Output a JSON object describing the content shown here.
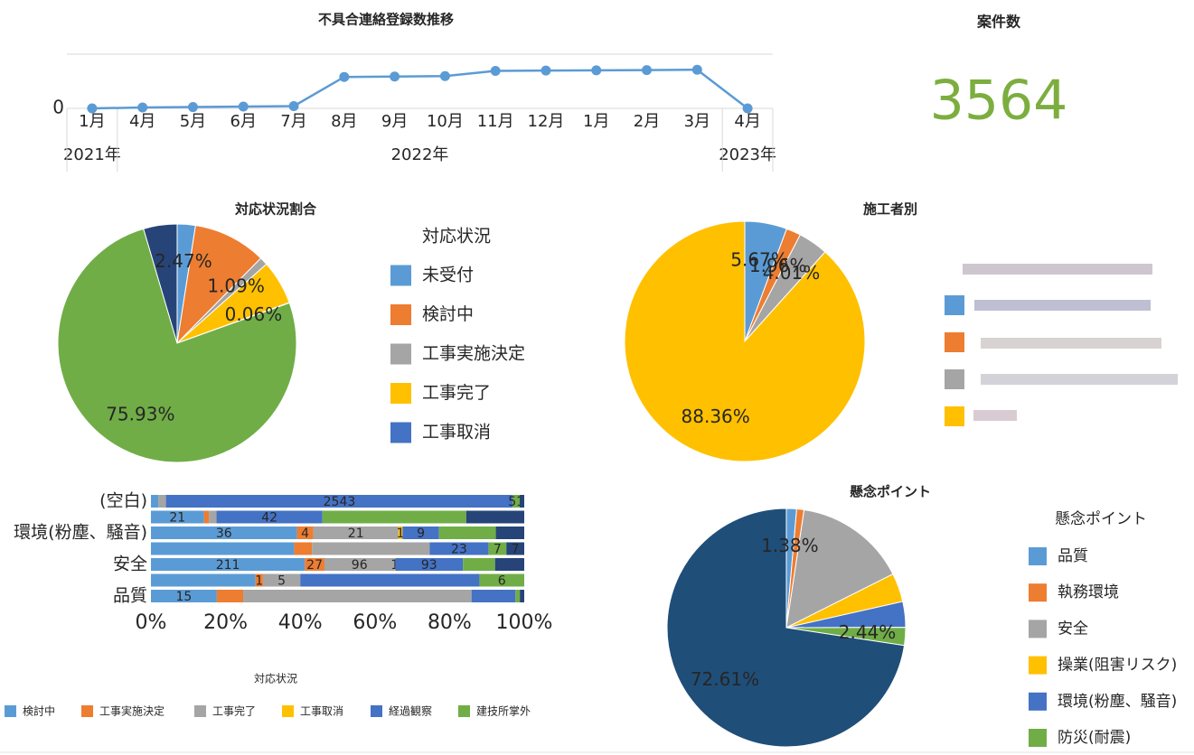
{
  "chart_data": [
    {
      "type": "line",
      "title": "不具合連絡登録数推移",
      "categories": [
        "1月",
        "4月",
        "5月",
        "6月",
        "7月",
        "8月",
        "9月",
        "10月",
        "11月",
        "12月",
        "1月",
        "2月",
        "3月",
        "4月"
      ],
      "year_labels": [
        "2021年",
        "2022年",
        null,
        null,
        null,
        null,
        null,
        null,
        null,
        null,
        null,
        null,
        null,
        "2023年"
      ],
      "values": [
        0,
        80,
        120,
        170,
        210,
        2900,
        2940,
        2980,
        3460,
        3490,
        3510,
        3530,
        3564,
        0
      ],
      "color": "#5b9bd5",
      "ylim": [
        0,
        5000
      ],
      "yticks": [
        0
      ]
    },
    {
      "type": "number",
      "title": "案件数",
      "value": 3564,
      "color": "#7cae3f"
    },
    {
      "type": "pie",
      "title": "対応状況割合",
      "legend_title": "対応状況",
      "categories": [
        "未受付",
        "検討中",
        "工事実施決定",
        "工事完了",
        "工事取消",
        null,
        null
      ],
      "values": [
        2.47,
        9.9,
        1.09,
        6.0,
        0.06,
        75.93,
        4.55
      ],
      "value_labels": [
        "2.47%",
        null,
        "1.09%",
        null,
        "0.06%",
        "75.93%",
        null
      ],
      "colors": [
        "#5b9bd5",
        "#ed7d31",
        "#a5a5a5",
        "#ffc000",
        "#4472c4",
        "#70ad47",
        "#264478"
      ]
    },
    {
      "type": "pie",
      "title": "施工者別",
      "categories": [
        null,
        null,
        null,
        null
      ],
      "values": [
        5.67,
        1.96,
        4.01,
        88.36
      ],
      "value_labels": [
        "5.67%",
        "1.96%",
        "4.01%",
        "88.36%"
      ],
      "colors": [
        "#5b9bd5",
        "#ed7d31",
        "#a5a5a5",
        "#ffc000"
      ]
    },
    {
      "type": "bar",
      "orientation": "horizontal",
      "stacked": "percent",
      "legend_title": "対応状況",
      "categories": [
        "(空白)",
        null,
        "環境(粉塵、騒音)",
        null,
        "安全",
        null,
        "品質"
      ],
      "series": [
        {
          "name": "検討中",
          "color": "#5b9bd5",
          "values": [
            55,
            21,
            36,
            56,
            211,
            14,
            15
          ],
          "value_labels": [
            null,
            "21",
            "36",
            null,
            "211",
            null,
            "15"
          ]
        },
        {
          "name": "工事実施決定",
          "color": "#ed7d31",
          "values": [
            0,
            2,
            4,
            7,
            27,
            1,
            6
          ],
          "value_labels": [
            null,
            null,
            "4",
            null,
            "27",
            "1",
            null
          ]
        },
        {
          "name": "工事完了",
          "color": "#a5a5a5",
          "values": [
            55,
            3,
            21,
            46,
            96,
            5,
            52
          ],
          "value_labels": [
            null,
            null,
            "21",
            null,
            "96",
            "5",
            null
          ]
        },
        {
          "name": "工事取消",
          "color": "#ffc000",
          "values": [
            0,
            0,
            1,
            0,
            1,
            0,
            0
          ],
          "value_labels": [
            null,
            null,
            "1",
            null,
            "1",
            null,
            null
          ]
        },
        {
          "name": "経過観察",
          "color": "#4472c4",
          "values": [
            2543,
            42,
            9,
            23,
            93,
            24,
            10
          ],
          "value_labels": [
            "2543",
            "42",
            "9",
            "23",
            "93",
            null,
            null
          ]
        },
        {
          "name": "建技所掌外",
          "color": "#70ad47",
          "values": [
            51,
            57,
            14,
            7,
            44,
            6,
            1
          ],
          "value_labels": [
            "51",
            null,
            null,
            "7",
            null,
            "6",
            null
          ]
        },
        {
          "name": null,
          "color": "#264478",
          "values": [
            33,
            23,
            7,
            7,
            40,
            0,
            1
          ],
          "value_labels": [
            null,
            null,
            null,
            "7",
            null,
            null,
            null
          ]
        }
      ],
      "xlim": [
        0,
        100
      ],
      "xticks": [
        {
          "value": 0,
          "label": "0%"
        },
        {
          "value": 20,
          "label": "20%"
        },
        {
          "value": 40,
          "label": "40%"
        },
        {
          "value": 60,
          "label": "60%"
        },
        {
          "value": 80,
          "label": "80%"
        },
        {
          "value": 100,
          "label": "100%"
        }
      ]
    },
    {
      "type": "pie",
      "title": "懸念ポイント",
      "legend_title": "懸念ポイント",
      "categories": [
        "品質",
        "執務環境",
        "安全",
        "操業(阻害リスク)",
        "環境(粉塵、騒音)",
        "防災(耐震)",
        null
      ],
      "values": [
        1.38,
        1.0,
        15.2,
        3.9,
        3.47,
        2.44,
        72.61
      ],
      "value_labels": [
        "1.38%",
        null,
        null,
        null,
        null,
        "2.44%",
        "72.61%"
      ],
      "colors": [
        "#5b9bd5",
        "#ed7d31",
        "#a5a5a5",
        "#ffc000",
        "#4472c4",
        "#70ad47",
        "#1f4e79"
      ]
    }
  ]
}
